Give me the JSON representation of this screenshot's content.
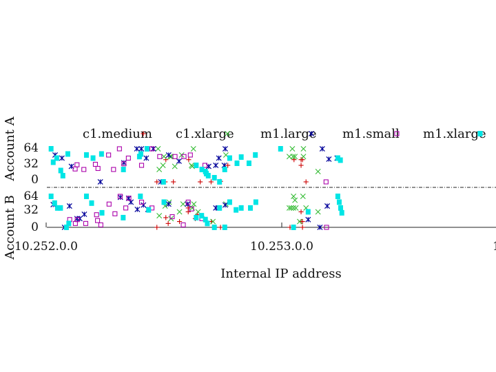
{
  "chart_data": {
    "type": "scatter",
    "xlabel": "Internal IP address",
    "ylabel_top": "Account A",
    "ylabel_bottom": "Account B",
    "x_ticks": [
      "10.252.0.0",
      "10.253.0.0"
    ],
    "x_tick_right_partial": "1",
    "y_ticks_top": [
      "64",
      "32",
      "0"
    ],
    "y_ticks_bottom": [
      "64",
      "32",
      "0"
    ],
    "ylim": [
      0,
      64
    ],
    "legend_position": "top",
    "colors": {
      "c1.medium": "#cc0000",
      "c1.xlarge": "#33bb33",
      "m1.large": "#000099",
      "m1.small": "#aa00aa",
      "m1.xlarge": "#00e5e5"
    },
    "series": [
      {
        "name": "c1.medium",
        "marker": "plus",
        "account_a": [
          [
            0.47,
            0
          ],
          [
            0.505,
            0
          ],
          [
            0.508,
            43
          ],
          [
            0.54,
            0
          ],
          [
            0.605,
            43
          ],
          [
            0.633,
            32
          ],
          [
            0.654,
            0
          ],
          [
            0.7,
            0
          ],
          [
            0.74,
            1
          ],
          [
            0.771,
            32
          ],
          [
            1.052,
            43
          ],
          [
            1.082,
            32
          ],
          [
            1.082,
            43
          ],
          [
            1.088,
            43
          ],
          [
            1.103,
            0
          ]
        ],
        "account_b": [
          [
            0.47,
            0
          ],
          [
            0.508,
            20
          ],
          [
            0.518,
            8
          ],
          [
            0.566,
            12
          ],
          [
            0.603,
            32
          ],
          [
            0.603,
            40
          ],
          [
            0.633,
            18
          ],
          [
            0.643,
            26
          ],
          [
            0.701,
            12
          ],
          [
            0.74,
            0
          ],
          [
            1.035,
            0
          ],
          [
            1.082,
            32
          ],
          [
            1.082,
            12
          ],
          [
            1.088,
            12
          ],
          [
            1.088,
            0
          ]
        ]
      },
      {
        "name": "c1.xlarge",
        "marker": "x",
        "account_a": [
          [
            0.475,
            64
          ],
          [
            0.48,
            24
          ],
          [
            0.496,
            32
          ],
          [
            0.5,
            49
          ],
          [
            0.526,
            49
          ],
          [
            0.531,
            49
          ],
          [
            0.546,
            30
          ],
          [
            0.575,
            52
          ],
          [
            0.617,
            32
          ],
          [
            0.62,
            30
          ],
          [
            0.625,
            64
          ],
          [
            0.763,
            52
          ],
          [
            1.032,
            49
          ],
          [
            1.048,
            49
          ],
          [
            1.045,
            64
          ],
          [
            1.056,
            49
          ],
          [
            1.092,
            64
          ],
          [
            1.092,
            49
          ],
          [
            1.154,
            20
          ]
        ],
        "account_b": [
          [
            0.48,
            24
          ],
          [
            0.505,
            44
          ],
          [
            0.522,
            52
          ],
          [
            0.53,
            18
          ],
          [
            0.566,
            32
          ],
          [
            0.581,
            48
          ],
          [
            0.62,
            40
          ],
          [
            0.627,
            48
          ],
          [
            0.645,
            32
          ],
          [
            0.708,
            12
          ],
          [
            0.763,
            48
          ],
          [
            1.032,
            40
          ],
          [
            1.04,
            40
          ],
          [
            1.05,
            40
          ],
          [
            1.05,
            64
          ],
          [
            1.056,
            56
          ],
          [
            1.06,
            40
          ],
          [
            1.076,
            12
          ],
          [
            1.09,
            64
          ],
          [
            1.103,
            40
          ],
          [
            1.154,
            32
          ]
        ]
      },
      {
        "name": "m1.large",
        "marker": "asterisk",
        "account_a": [
          [
            0.038,
            52
          ],
          [
            0.067,
            46
          ],
          [
            0.107,
            30
          ],
          [
            0.23,
            0
          ],
          [
            0.33,
            37
          ],
          [
            0.385,
            64
          ],
          [
            0.404,
            64
          ],
          [
            0.425,
            46
          ],
          [
            0.455,
            64
          ],
          [
            0.487,
            0
          ],
          [
            0.52,
            52
          ],
          [
            0.564,
            40
          ],
          [
            0.69,
            30
          ],
          [
            0.72,
            32
          ],
          [
            0.733,
            46
          ],
          [
            0.76,
            64
          ],
          [
            0.756,
            32
          ],
          [
            1.172,
            64
          ],
          [
            1.2,
            44
          ],
          [
            1.235,
            46
          ]
        ],
        "account_b": [
          [
            0.03,
            47
          ],
          [
            0.078,
            0
          ],
          [
            0.099,
            44
          ],
          [
            0.131,
            18
          ],
          [
            0.143,
            18
          ],
          [
            0.162,
            27
          ],
          [
            0.315,
            62
          ],
          [
            0.35,
            60
          ],
          [
            0.36,
            52
          ],
          [
            0.387,
            37
          ],
          [
            0.413,
            46
          ],
          [
            0.432,
            37
          ],
          [
            0.52,
            48
          ],
          [
            0.6,
            48
          ],
          [
            0.72,
            40
          ],
          [
            0.733,
            40
          ],
          [
            0.76,
            46
          ],
          [
            1.112,
            16
          ],
          [
            1.162,
            0
          ],
          [
            1.193,
            44
          ]
        ]
      },
      {
        "name": "m1.small",
        "marker": "square_open",
        "account_a": [
          [
            0.123,
            25
          ],
          [
            0.131,
            33
          ],
          [
            0.16,
            24
          ],
          [
            0.209,
            34
          ],
          [
            0.22,
            26
          ],
          [
            0.265,
            52
          ],
          [
            0.286,
            24
          ],
          [
            0.311,
            64
          ],
          [
            0.33,
            35
          ],
          [
            0.349,
            46
          ],
          [
            0.405,
            32
          ],
          [
            0.449,
            64
          ],
          [
            0.482,
            49
          ],
          [
            0.547,
            49
          ],
          [
            0.585,
            49
          ],
          [
            0.612,
            52
          ],
          [
            0.674,
            32
          ],
          [
            1.188,
            0
          ]
        ],
        "account_b": [
          [
            0.1,
            16
          ],
          [
            0.124,
            8
          ],
          [
            0.132,
            16
          ],
          [
            0.168,
            8
          ],
          [
            0.214,
            26
          ],
          [
            0.218,
            14
          ],
          [
            0.232,
            5
          ],
          [
            0.267,
            48
          ],
          [
            0.292,
            28
          ],
          [
            0.314,
            64
          ],
          [
            0.338,
            40
          ],
          [
            0.351,
            60
          ],
          [
            0.405,
            52
          ],
          [
            0.449,
            40
          ],
          [
            0.535,
            22
          ],
          [
            0.582,
            5
          ],
          [
            0.603,
            52
          ],
          [
            0.617,
            38
          ],
          [
            0.661,
            18
          ],
          [
            1.19,
            0
          ]
        ]
      },
      {
        "name": "m1.xlarge",
        "marker": "square_filled",
        "account_a": [
          [
            0.021,
            64
          ],
          [
            0.03,
            38
          ],
          [
            0.045,
            46
          ],
          [
            0.062,
            22
          ],
          [
            0.071,
            12
          ],
          [
            0.092,
            54
          ],
          [
            0.171,
            52
          ],
          [
            0.199,
            46
          ],
          [
            0.235,
            54
          ],
          [
            0.328,
            24
          ],
          [
            0.396,
            49
          ],
          [
            0.402,
            54
          ],
          [
            0.428,
            64
          ],
          [
            0.498,
            0
          ],
          [
            0.637,
            32
          ],
          [
            0.661,
            24
          ],
          [
            0.676,
            20
          ],
          [
            0.68,
            16
          ],
          [
            0.688,
            12
          ],
          [
            0.714,
            8
          ],
          [
            0.736,
            0
          ],
          [
            0.758,
            24
          ],
          [
            0.779,
            46
          ],
          [
            0.81,
            36
          ],
          [
            0.828,
            48
          ],
          [
            0.861,
            36
          ],
          [
            0.888,
            52
          ],
          [
            0.995,
            64
          ],
          [
            1.238,
            46
          ],
          [
            1.249,
            42
          ]
        ],
        "account_b": [
          [
            0.021,
            64
          ],
          [
            0.036,
            50
          ],
          [
            0.048,
            40
          ],
          [
            0.061,
            40
          ],
          [
            0.086,
            0
          ],
          [
            0.096,
            8
          ],
          [
            0.171,
            64
          ],
          [
            0.193,
            50
          ],
          [
            0.237,
            30
          ],
          [
            0.327,
            20
          ],
          [
            0.4,
            64
          ],
          [
            0.435,
            36
          ],
          [
            0.5,
            52
          ],
          [
            0.637,
            20
          ],
          [
            0.66,
            24
          ],
          [
            0.676,
            16
          ],
          [
            0.684,
            8
          ],
          [
            0.714,
            0
          ],
          [
            0.736,
            40
          ],
          [
            0.758,
            0
          ],
          [
            0.779,
            52
          ],
          [
            0.806,
            36
          ],
          [
            0.828,
            40
          ],
          [
            0.867,
            40
          ],
          [
            0.89,
            52
          ],
          [
            1.05,
            0
          ],
          [
            1.112,
            32
          ],
          [
            1.238,
            64
          ],
          [
            1.244,
            52
          ],
          [
            1.25,
            40
          ],
          [
            1.255,
            30
          ]
        ]
      }
    ]
  }
}
